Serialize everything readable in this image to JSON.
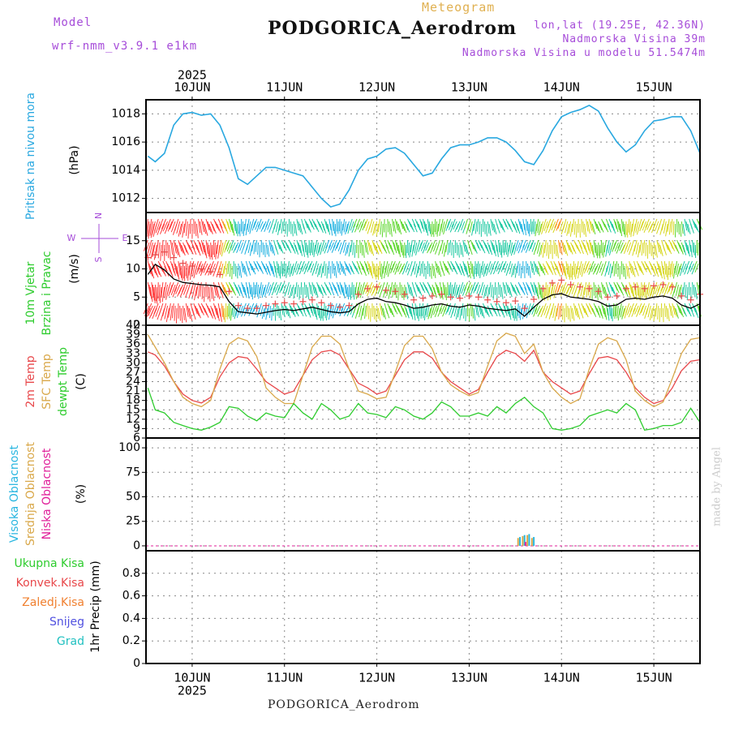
{
  "header": {
    "model_label": "Model",
    "model_name": "wrf-nmm_v3.9.1 e1km",
    "title": "PODGORICA_Aerodrom",
    "meteogram": "Meteogram",
    "lonlat": "lon,lat (19.25E, 42.36N)",
    "altitude": "Nadmorska Visina 39m",
    "model_altitude": "Nadmorska Visina u modelu 51.5474m"
  },
  "footer": {
    "station": "PODGORICA_Aerodrom",
    "credit": "made by Angel"
  },
  "colors": {
    "pressure": "#29a8e0",
    "temp2m": "#e8474a",
    "sfc_temp": "#d9a84a",
    "dewpt": "#2ecc2e",
    "wind_speed": "#000000",
    "gust": "#e84a4a",
    "high_cloud": "#29b6e0",
    "mid_cloud": "#d9a84a",
    "low_cloud": "#e0209a",
    "precip_total": "#2ecc2e",
    "precip_conv": "#e8474a",
    "precip_frz": "#f08030",
    "precip_snow": "#5050e0",
    "precip_grad": "#20c0c0"
  },
  "chart_data": [
    {
      "type": "line",
      "name": "pressure",
      "ylabel": "Pritisak na nivou mora",
      "unit": "(hPa)",
      "ylim": [
        1011,
        1019
      ],
      "yticks": [
        1012,
        1014,
        1016,
        1018
      ],
      "x_days": [
        "10JUN",
        "11JUN",
        "12JUN",
        "13JUN",
        "14JUN",
        "15JUN"
      ],
      "year": "2025",
      "grid": true,
      "x": [
        -0.48,
        -0.4,
        -0.3,
        -0.2,
        -0.1,
        0.0,
        0.1,
        0.2,
        0.3,
        0.4,
        0.5,
        0.6,
        0.7,
        0.8,
        0.9,
        1.0,
        1.1,
        1.2,
        1.3,
        1.4,
        1.5,
        1.6,
        1.7,
        1.8,
        1.9,
        2.0,
        2.1,
        2.2,
        2.3,
        2.4,
        2.5,
        2.6,
        2.7,
        2.8,
        2.9,
        3.0,
        3.1,
        3.2,
        3.3,
        3.4,
        3.5,
        3.6,
        3.7,
        3.8,
        3.9,
        4.0,
        4.1,
        4.2,
        4.3,
        4.4,
        4.5,
        4.6,
        4.7,
        4.8,
        4.9,
        5.0,
        5.1,
        5.2,
        5.3,
        5.4,
        5.5
      ],
      "values": [
        1015.0,
        1014.6,
        1015.2,
        1017.2,
        1018.0,
        1018.1,
        1017.9,
        1018.0,
        1017.2,
        1015.6,
        1013.4,
        1013.0,
        1013.6,
        1014.2,
        1014.2,
        1014.0,
        1013.8,
        1013.6,
        1012.8,
        1012.0,
        1011.4,
        1011.6,
        1012.6,
        1014.0,
        1014.8,
        1015.0,
        1015.5,
        1015.6,
        1015.2,
        1014.4,
        1013.6,
        1013.8,
        1014.8,
        1015.6,
        1015.8,
        1015.8,
        1016.0,
        1016.3,
        1016.3,
        1016.0,
        1015.4,
        1014.6,
        1014.4,
        1015.4,
        1016.8,
        1017.8,
        1018.1,
        1018.3,
        1018.6,
        1018.2,
        1017.0,
        1016.0,
        1015.3,
        1015.8,
        1016.8,
        1017.5,
        1017.6,
        1017.8,
        1017.8,
        1016.8,
        1015.2
      ]
    },
    {
      "type": "line",
      "name": "wind",
      "ylabel": "10m Vjetar Brzina i Pravac",
      "unit": "(m/s)",
      "ylim": [
        0,
        20
      ],
      "yticks": [
        0,
        5,
        10,
        15
      ],
      "compass": "N",
      "compass_w": "W",
      "compass_e": "E",
      "compass_s": "S",
      "grid": true,
      "x": [
        -0.48,
        -0.4,
        -0.3,
        -0.2,
        -0.1,
        0.0,
        0.1,
        0.2,
        0.3,
        0.4,
        0.5,
        0.6,
        0.7,
        0.8,
        0.9,
        1.0,
        1.1,
        1.2,
        1.3,
        1.4,
        1.5,
        1.6,
        1.7,
        1.8,
        1.9,
        2.0,
        2.1,
        2.2,
        2.3,
        2.4,
        2.5,
        2.6,
        2.7,
        2.8,
        2.9,
        3.0,
        3.1,
        3.2,
        3.3,
        3.4,
        3.5,
        3.6,
        3.7,
        3.8,
        3.9,
        4.0,
        4.1,
        4.2,
        4.3,
        4.4,
        4.5,
        4.6,
        4.7,
        4.8,
        4.9,
        5.0,
        5.1,
        5.2,
        5.3,
        5.4,
        5.5
      ],
      "speed": [
        9.0,
        10.8,
        9.8,
        8.2,
        7.6,
        7.4,
        7.2,
        7.1,
        6.8,
        4.2,
        2.4,
        2.2,
        2.0,
        2.3,
        2.6,
        2.8,
        2.6,
        2.9,
        3.2,
        2.8,
        2.4,
        2.2,
        2.4,
        3.8,
        4.6,
        4.8,
        4.2,
        4.0,
        3.6,
        3.0,
        3.2,
        3.6,
        3.8,
        3.4,
        3.2,
        3.6,
        3.4,
        3.0,
        2.8,
        2.6,
        2.9,
        1.6,
        3.2,
        4.6,
        5.4,
        5.6,
        5.0,
        4.8,
        4.6,
        4.2,
        3.4,
        3.6,
        4.6,
        4.8,
        4.6,
        5.0,
        5.2,
        4.8,
        3.6,
        3.0,
        3.8
      ],
      "gust": [
        12.0,
        12.5,
        13.0,
        12.0,
        11.0,
        10.5,
        10.0,
        9.5,
        9.0,
        6.0,
        3.5,
        3.0,
        3.0,
        3.5,
        3.8,
        4.0,
        3.8,
        4.2,
        4.5,
        4.0,
        3.5,
        3.2,
        3.5,
        5.5,
        6.5,
        6.8,
        6.2,
        6.0,
        5.5,
        4.5,
        4.8,
        5.2,
        5.5,
        5.0,
        4.8,
        5.2,
        5.0,
        4.5,
        4.2,
        4.0,
        4.3,
        3.0,
        4.6,
        6.5,
        7.5,
        8.0,
        7.2,
        6.8,
        6.5,
        6.0,
        5.0,
        5.2,
        6.5,
        6.8,
        6.5,
        7.0,
        7.2,
        6.8,
        5.2,
        4.5,
        5.5
      ]
    },
    {
      "type": "line",
      "name": "temperature",
      "ylabel1": "2m Temp",
      "ylabel2": "SFC Temp",
      "ylabel3": "dewpt Temp",
      "unit": "(C)",
      "ylim": [
        6,
        42
      ],
      "yticks": [
        6,
        9,
        12,
        15,
        18,
        21,
        24,
        27,
        30,
        33,
        36,
        39,
        42
      ],
      "grid": true,
      "x": [
        -0.48,
        -0.4,
        -0.3,
        -0.2,
        -0.1,
        0.0,
        0.1,
        0.2,
        0.3,
        0.4,
        0.5,
        0.6,
        0.7,
        0.8,
        0.9,
        1.0,
        1.1,
        1.2,
        1.3,
        1.4,
        1.5,
        1.6,
        1.7,
        1.8,
        1.9,
        2.0,
        2.1,
        2.2,
        2.3,
        2.4,
        2.5,
        2.6,
        2.7,
        2.8,
        2.9,
        3.0,
        3.1,
        3.2,
        3.3,
        3.4,
        3.5,
        3.6,
        3.7,
        3.8,
        3.9,
        4.0,
        4.1,
        4.2,
        4.3,
        4.4,
        4.5,
        4.6,
        4.7,
        4.8,
        4.9,
        5.0,
        5.1,
        5.2,
        5.3,
        5.4,
        5.5
      ],
      "series": [
        {
          "name": "2m Temp",
          "values": [
            33.5,
            32.5,
            29.0,
            24.0,
            20.0,
            18.0,
            17.2,
            19.0,
            25.5,
            30.0,
            32.0,
            31.5,
            28.0,
            24.0,
            22.0,
            20.0,
            21.0,
            26.0,
            31.0,
            33.5,
            34.0,
            32.5,
            28.0,
            23.5,
            22.0,
            20.0,
            21.0,
            26.0,
            31.0,
            33.5,
            33.5,
            31.5,
            27.0,
            24.0,
            22.0,
            20.0,
            21.5,
            27.0,
            32.0,
            34.0,
            33.0,
            30.5,
            34.0,
            27.0,
            24.0,
            22.0,
            20.0,
            21.0,
            26.5,
            31.5,
            32.0,
            31.0,
            27.0,
            22.0,
            19.0,
            17.0,
            18.0,
            22.0,
            27.5,
            30.5,
            31.0
          ]
        },
        {
          "name": "SFC Temp",
          "values": [
            39.0,
            35.0,
            30.0,
            24.0,
            19.0,
            17.0,
            16.0,
            18.0,
            28.0,
            36.0,
            38.0,
            37.0,
            32.0,
            22.0,
            19.0,
            17.0,
            17.0,
            26.0,
            35.0,
            38.5,
            38.5,
            36.0,
            28.0,
            21.0,
            20.0,
            18.5,
            19.0,
            27.0,
            35.5,
            38.5,
            38.5,
            34.5,
            27.0,
            23.0,
            21.0,
            19.5,
            20.5,
            29.0,
            37.0,
            39.5,
            38.5,
            33.0,
            36.0,
            27.0,
            22.0,
            19.0,
            17.0,
            18.5,
            28.0,
            36.0,
            38.0,
            37.0,
            31.0,
            21.0,
            18.0,
            16.0,
            17.5,
            25.0,
            33.0,
            37.5,
            38.0
          ]
        },
        {
          "name": "dewpt Temp",
          "values": [
            22.0,
            15.0,
            14.0,
            11.0,
            10.0,
            9.0,
            8.5,
            9.5,
            11.0,
            16.0,
            15.5,
            13.0,
            11.5,
            14.0,
            13.0,
            12.5,
            17.0,
            14.0,
            12.0,
            17.0,
            15.0,
            12.0,
            13.0,
            17.0,
            14.0,
            13.5,
            12.5,
            16.0,
            15.0,
            13.0,
            12.0,
            14.0,
            17.5,
            16.0,
            13.0,
            13.0,
            14.0,
            13.0,
            16.0,
            14.0,
            17.0,
            19.0,
            16.0,
            14.0,
            9.0,
            8.5,
            9.0,
            10.0,
            13.0,
            14.0,
            15.0,
            14.0,
            17.0,
            15.0,
            8.5,
            9.0,
            10.0,
            10.0,
            11.0,
            15.5,
            11.0
          ]
        }
      ]
    },
    {
      "type": "bar",
      "name": "cloud",
      "ylabel1": "Visoka Oblacnost",
      "ylabel2": "Srednja Oblacnost",
      "ylabel3": "Niska Oblacnost",
      "unit": "(%)",
      "ylim": [
        -5,
        110
      ],
      "yticks": [
        0,
        25,
        50,
        75,
        100
      ],
      "grid": true,
      "series": [
        {
          "name": "Visoka Oblacnost",
          "x": [
            3.55,
            3.6,
            3.65,
            3.7
          ],
          "values": [
            9,
            11,
            12,
            9
          ]
        },
        {
          "name": "Srednja Oblacnost",
          "x": [
            3.53,
            3.58,
            3.63,
            3.68
          ],
          "values": [
            8,
            10,
            11,
            8
          ]
        },
        {
          "name": "Niska Oblacnost",
          "x": [
            3.61
          ],
          "values": [
            4
          ]
        }
      ]
    },
    {
      "type": "bar",
      "name": "precip",
      "unit": "1hr Precip (mm)",
      "ylim": [
        0,
        1.0
      ],
      "yticks": [
        0,
        0.2,
        0.4,
        0.6,
        0.8
      ],
      "grid": true,
      "legend": [
        "Ukupna Kisa",
        "Konvek.Kisa",
        "Zaledj.Kisa",
        "Snijeg",
        "Grad"
      ],
      "values": []
    }
  ]
}
